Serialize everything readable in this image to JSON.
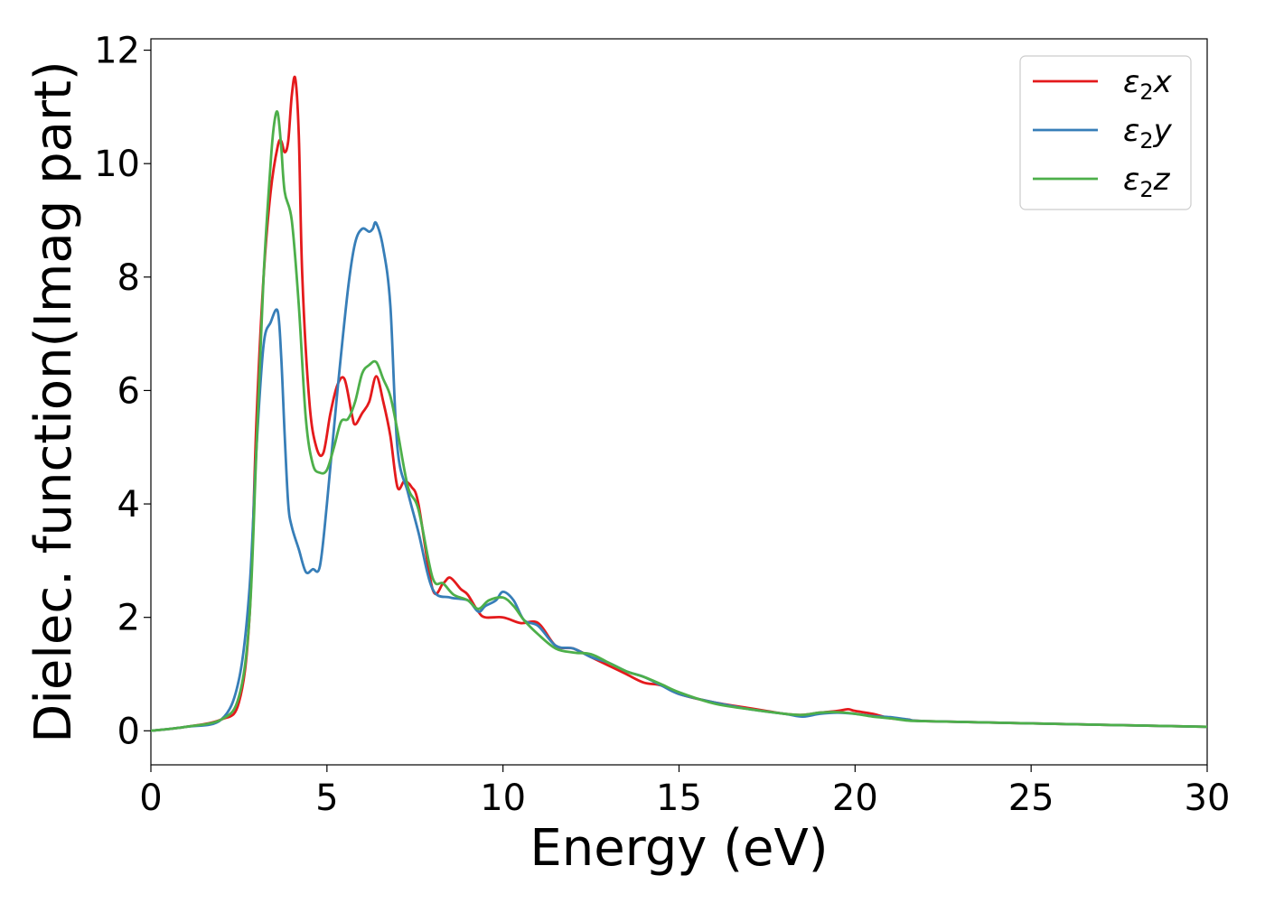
{
  "chart_data": {
    "type": "line",
    "xlabel": "Energy (eV)",
    "ylabel": "Dielec. function(Imag part)",
    "xlim": [
      0,
      30
    ],
    "ylim": [
      -0.6,
      12.2
    ],
    "xticks": [
      0,
      5,
      10,
      15,
      20,
      25,
      30
    ],
    "yticks": [
      0,
      2,
      4,
      6,
      8,
      10,
      12
    ],
    "grid": false,
    "legend_position": "top-right",
    "series": [
      {
        "name": "ε₂x",
        "label_base": "ε",
        "label_sub": "2",
        "label_tail": "x",
        "color": "#e41a1c",
        "x": [
          0,
          1,
          2,
          2.5,
          2.8,
          3.0,
          3.2,
          3.4,
          3.6,
          3.7,
          3.8,
          3.9,
          4.0,
          4.1,
          4.2,
          4.3,
          4.5,
          4.7,
          4.9,
          5.1,
          5.3,
          5.5,
          5.7,
          5.8,
          6.0,
          6.2,
          6.4,
          6.6,
          6.8,
          7.0,
          7.2,
          7.4,
          7.6,
          8.0,
          8.3,
          8.5,
          8.8,
          9.0,
          9.3,
          9.5,
          10.0,
          10.5,
          11.0,
          11.5,
          12.0,
          12.5,
          13.0,
          13.5,
          14.0,
          14.5,
          15.0,
          16.0,
          17.0,
          18.0,
          18.5,
          19.0,
          19.5,
          19.8,
          20.0,
          20.5,
          21.0,
          21.5,
          22.0,
          25.0,
          30.0
        ],
        "y": [
          0.0,
          0.07,
          0.2,
          0.5,
          2.0,
          5.5,
          8.0,
          9.5,
          10.3,
          10.4,
          10.2,
          10.4,
          11.2,
          11.5,
          10.5,
          8.0,
          5.8,
          5.0,
          4.9,
          5.6,
          6.1,
          6.2,
          5.6,
          5.4,
          5.6,
          5.8,
          6.25,
          5.8,
          5.2,
          4.3,
          4.4,
          4.3,
          4.0,
          2.5,
          2.6,
          2.7,
          2.5,
          2.4,
          2.1,
          2.0,
          2.0,
          1.9,
          1.9,
          1.5,
          1.45,
          1.3,
          1.15,
          1.0,
          0.85,
          0.8,
          0.65,
          0.5,
          0.4,
          0.3,
          0.28,
          0.32,
          0.35,
          0.38,
          0.35,
          0.3,
          0.22,
          0.2,
          0.17,
          0.13,
          0.07
        ]
      },
      {
        "name": "ε₂y",
        "label_base": "ε",
        "label_sub": "2",
        "label_tail": "y",
        "color": "#377eb8",
        "x": [
          0,
          1,
          2,
          2.5,
          2.8,
          3.0,
          3.2,
          3.4,
          3.6,
          3.7,
          3.8,
          3.9,
          4.0,
          4.2,
          4.4,
          4.6,
          4.8,
          5.0,
          5.3,
          5.6,
          5.8,
          6.0,
          6.2,
          6.3,
          6.4,
          6.6,
          6.8,
          7.0,
          7.3,
          7.6,
          8.0,
          8.5,
          9.0,
          9.3,
          9.5,
          9.8,
          10.0,
          10.3,
          10.6,
          11.0,
          11.5,
          12.0,
          12.5,
          13.0,
          13.5,
          14.0,
          14.5,
          15.0,
          16.0,
          17.0,
          18.0,
          18.5,
          19.0,
          19.5,
          20.0,
          20.5,
          21.0,
          21.5,
          22.0,
          25.0,
          30.0
        ],
        "y": [
          0.0,
          0.07,
          0.2,
          0.9,
          2.5,
          5.0,
          6.8,
          7.2,
          7.4,
          6.6,
          5.2,
          4.0,
          3.6,
          3.2,
          2.8,
          2.85,
          2.9,
          4.0,
          6.0,
          7.8,
          8.6,
          8.85,
          8.8,
          8.85,
          8.95,
          8.5,
          7.5,
          5.0,
          4.2,
          3.5,
          2.5,
          2.35,
          2.3,
          2.1,
          2.2,
          2.3,
          2.45,
          2.3,
          1.95,
          1.85,
          1.5,
          1.45,
          1.3,
          1.2,
          1.05,
          0.95,
          0.8,
          0.65,
          0.5,
          0.38,
          0.3,
          0.25,
          0.3,
          0.32,
          0.3,
          0.26,
          0.24,
          0.2,
          0.17,
          0.13,
          0.07
        ]
      },
      {
        "name": "ε₂z",
        "label_base": "ε",
        "label_sub": "2",
        "label_tail": "z",
        "color": "#4daf4a",
        "x": [
          0,
          1,
          2,
          2.5,
          2.8,
          3.0,
          3.2,
          3.4,
          3.5,
          3.6,
          3.7,
          3.8,
          4.0,
          4.2,
          4.4,
          4.6,
          4.8,
          5.0,
          5.2,
          5.4,
          5.6,
          5.8,
          6.0,
          6.2,
          6.4,
          6.6,
          6.8,
          7.0,
          7.3,
          7.6,
          8.0,
          8.3,
          8.6,
          9.0,
          9.3,
          9.6,
          10.0,
          10.3,
          10.6,
          11.0,
          11.5,
          12.0,
          12.5,
          13.0,
          13.5,
          14.0,
          14.5,
          15.0,
          16.0,
          17.0,
          18.0,
          18.5,
          19.0,
          19.5,
          20.0,
          20.5,
          21.0,
          21.5,
          22.0,
          25.0,
          30.0
        ],
        "y": [
          0.0,
          0.07,
          0.2,
          0.6,
          2.0,
          5.0,
          8.0,
          10.0,
          10.7,
          10.9,
          10.3,
          9.5,
          9.0,
          7.5,
          5.5,
          4.7,
          4.55,
          4.6,
          5.0,
          5.45,
          5.5,
          5.8,
          6.3,
          6.45,
          6.5,
          6.2,
          5.9,
          5.3,
          4.3,
          3.9,
          2.7,
          2.6,
          2.4,
          2.3,
          2.15,
          2.3,
          2.35,
          2.2,
          1.95,
          1.7,
          1.45,
          1.38,
          1.35,
          1.2,
          1.05,
          0.95,
          0.82,
          0.68,
          0.48,
          0.38,
          0.3,
          0.28,
          0.32,
          0.33,
          0.3,
          0.25,
          0.22,
          0.18,
          0.17,
          0.13,
          0.07
        ]
      }
    ]
  }
}
